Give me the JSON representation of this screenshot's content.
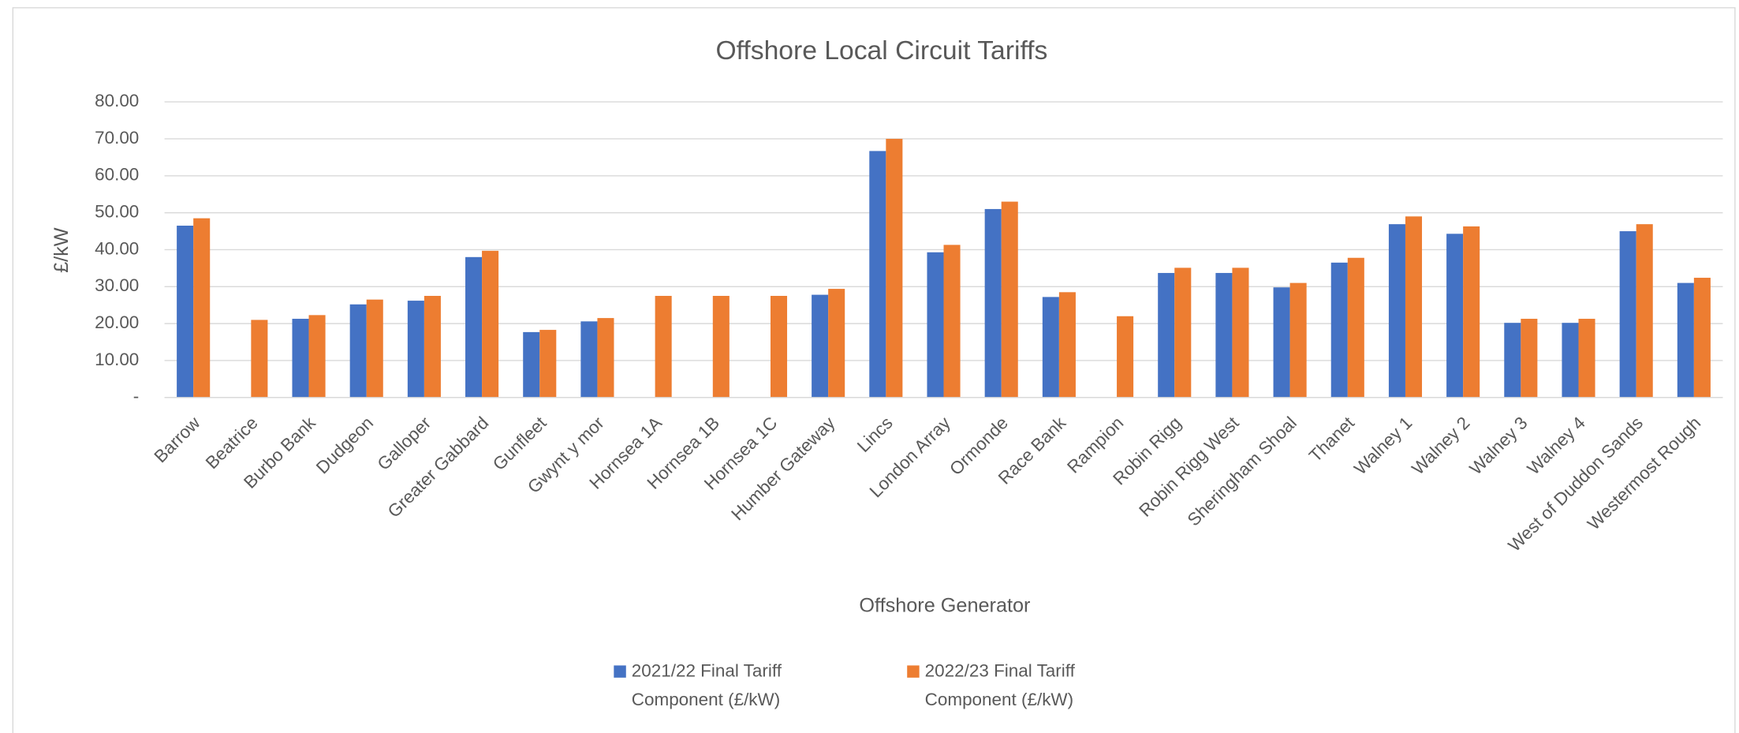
{
  "chart_data": {
    "type": "bar",
    "title": "Offshore Local Circuit Tariffs",
    "x_label": "Offshore Generator",
    "y_label": "£/kW",
    "categories": [
      "Barrow",
      "Beatrice",
      "Burbo Bank",
      "Dudgeon",
      "Galloper",
      "Greater Gabbard",
      "Gunfleet",
      "Gwynt y mor",
      "Hornsea 1A",
      "Hornsea 1B",
      "Hornsea 1C",
      "Humber Gateway",
      "Lincs",
      "London Array",
      "Ormonde",
      "Race Bank",
      "Rampion",
      "Robin Rigg",
      "Robin Rigg West",
      "Sheringham Shoal",
      "Thanet",
      "Walney 1",
      "Walney 2",
      "Walney 3",
      "Walney 4",
      "West of Duddon Sands",
      "Westermost Rough"
    ],
    "series": [
      {
        "name": "2021/22 Final Tariff Component (£/kW)",
        "color": "#4472c4",
        "values": [
          46.5,
          null,
          21.3,
          25.2,
          26.2,
          38.0,
          17.7,
          20.6,
          null,
          null,
          null,
          27.8,
          66.7,
          39.3,
          51.0,
          27.2,
          null,
          33.7,
          33.7,
          29.8,
          36.5,
          46.9,
          44.3,
          20.2,
          20.2,
          45.0,
          31.0
        ]
      },
      {
        "name": "2022/23 Final Tariff Component (£/kW)",
        "color": "#ed7d31",
        "values": [
          48.5,
          21.0,
          22.3,
          26.5,
          27.5,
          39.7,
          18.3,
          21.5,
          27.5,
          27.5,
          27.5,
          29.4,
          70.0,
          41.3,
          53.0,
          28.5,
          22.0,
          35.1,
          35.1,
          31.0,
          37.8,
          49.0,
          46.3,
          21.3,
          21.3,
          46.9,
          32.4
        ]
      }
    ],
    "ylim": [
      0,
      80
    ],
    "yticks": [
      {
        "value": 0,
        "label": "-"
      },
      {
        "value": 10,
        "label": "10.00"
      },
      {
        "value": 20,
        "label": "20.00"
      },
      {
        "value": 30,
        "label": "30.00"
      },
      {
        "value": 40,
        "label": "40.00"
      },
      {
        "value": 50,
        "label": "50.00"
      },
      {
        "value": 60,
        "label": "60.00"
      },
      {
        "value": 70,
        "label": "70.00"
      },
      {
        "value": 80,
        "label": "80.00"
      }
    ],
    "grid": true,
    "legend": "bottom"
  }
}
